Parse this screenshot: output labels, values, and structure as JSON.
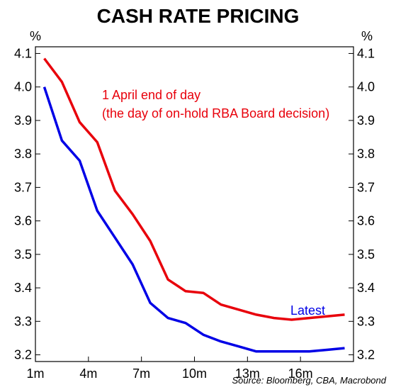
{
  "chart_data": {
    "type": "line",
    "title": "CASH RATE PRICING",
    "y_unit_left": "%",
    "y_unit_right": "%",
    "ylim": [
      3.18,
      4.12
    ],
    "xlim": [
      1,
      19
    ],
    "x_tick_values": [
      1,
      4,
      7,
      10,
      13,
      16
    ],
    "x_tick_labels": [
      "1m",
      "4m",
      "7m",
      "10m",
      "13m",
      "16m"
    ],
    "y_tick_values": [
      3.2,
      3.3,
      3.4,
      3.5,
      3.6,
      3.7,
      3.8,
      3.9,
      4.0,
      4.1
    ],
    "y_tick_labels": [
      "3.2",
      "3.3",
      "3.4",
      "3.5",
      "3.6",
      "3.7",
      "3.8",
      "3.9",
      "4.0",
      "4.1"
    ],
    "grid": false,
    "series": [
      {
        "name": "1 April end of day (the day of on-hold RBA Board decision)",
        "color": "#e8000b",
        "x": [
          1.5,
          2.5,
          3.5,
          4.5,
          5.5,
          6.5,
          7.5,
          8.5,
          9.5,
          10.5,
          11.5,
          12.5,
          13.5,
          14.5,
          15.5,
          16.5,
          17.5,
          18.5
        ],
        "y": [
          4.085,
          4.015,
          3.895,
          3.835,
          3.69,
          3.62,
          3.54,
          3.425,
          3.39,
          3.385,
          3.35,
          3.335,
          3.32,
          3.31,
          3.305,
          3.31,
          3.315,
          3.32
        ]
      },
      {
        "name": "Latest",
        "color": "#0000e6",
        "x": [
          1.5,
          2.5,
          3.5,
          4.5,
          5.5,
          6.5,
          7.5,
          8.5,
          9.5,
          10.5,
          11.5,
          12.5,
          13.5,
          14.5,
          15.5,
          16.5,
          17.5,
          18.5
        ],
        "y": [
          4.0,
          3.84,
          3.78,
          3.63,
          3.55,
          3.47,
          3.355,
          3.31,
          3.295,
          3.26,
          3.24,
          3.225,
          3.21,
          3.21,
          3.21,
          3.21,
          3.215,
          3.22
        ]
      }
    ],
    "annotations": [
      {
        "series": 0,
        "lines": [
          "1 April end of day",
          "(the day of on-hold RBA Board decision)"
        ]
      },
      {
        "series": 1,
        "lines": [
          "Latest"
        ]
      }
    ]
  },
  "source": "Source: Bloomberg, CBA, Macrobond"
}
